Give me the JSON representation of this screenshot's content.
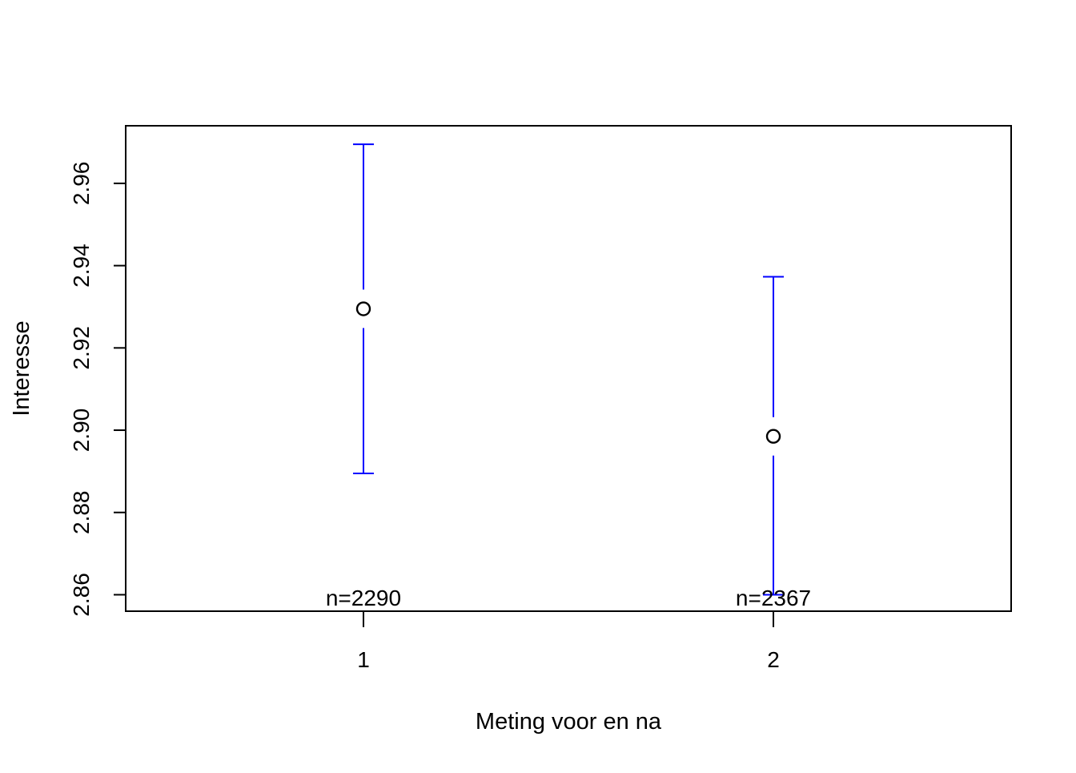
{
  "chart_data": {
    "type": "scatter",
    "title": "",
    "xlabel": "Meting voor en na",
    "ylabel": "Interesse",
    "x_ticks": [
      "1",
      "2"
    ],
    "y_ticks": [
      "2.86",
      "2.88",
      "2.90",
      "2.92",
      "2.94",
      "2.96"
    ],
    "xlim": [
      0.42,
      2.58
    ],
    "ylim": [
      2.856,
      2.974
    ],
    "grid": false,
    "points": [
      {
        "x": 1,
        "mean": 2.9295,
        "lower": 2.8895,
        "upper": 2.9695,
        "n_label": "n=2290"
      },
      {
        "x": 2,
        "mean": 2.8985,
        "lower": 2.86,
        "upper": 2.9373,
        "n_label": "n=2367"
      }
    ],
    "colors": {
      "error_bar": "#0000ff",
      "point": "#000000",
      "axes": "#000000"
    }
  }
}
